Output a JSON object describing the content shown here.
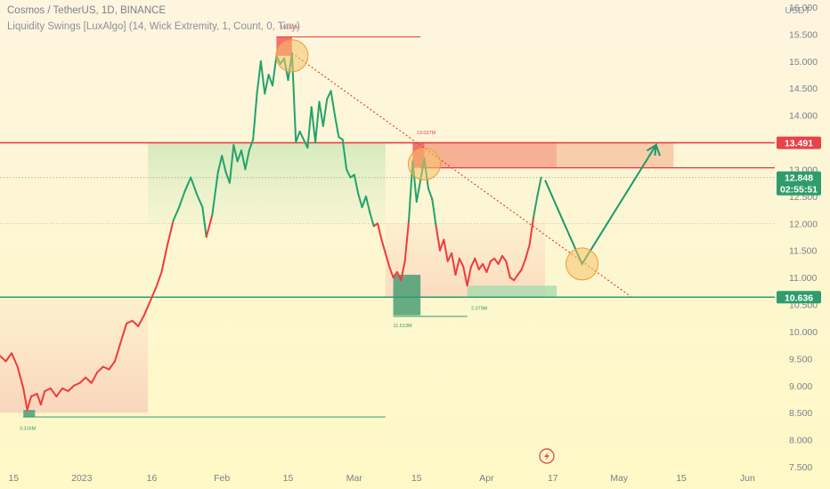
{
  "header": {
    "symbol_title": "Cosmos / TetherUS, 1D, BINANCE",
    "indicator_title": "Liquidity Swings [LuxAlgo] (14, Wick Extremity, 1, Count, 0, Tiny)",
    "currency": "USDT"
  },
  "colors": {
    "up": "#21a36c",
    "down": "#ef3b3b",
    "resistance": "#e8424a",
    "support": "#2e9d6b",
    "projection": "#1a9a6a",
    "circle_fill": "#f5c36a",
    "circle_stroke": "#ee9a3a"
  },
  "chart_data": {
    "type": "line",
    "price_series": [
      {
        "t": 0,
        "v": 9.55
      },
      {
        "t": 1.5,
        "v": 9.45
      },
      {
        "t": 3,
        "v": 9.6
      },
      {
        "t": 4.5,
        "v": 9.35
      },
      {
        "t": 6,
        "v": 8.95
      },
      {
        "t": 7,
        "v": 8.55
      },
      {
        "t": 8,
        "v": 8.8
      },
      {
        "t": 9.5,
        "v": 8.85
      },
      {
        "t": 10.5,
        "v": 8.65
      },
      {
        "t": 11.5,
        "v": 8.9
      },
      {
        "t": 13,
        "v": 8.95
      },
      {
        "t": 14.5,
        "v": 8.8
      },
      {
        "t": 16,
        "v": 8.95
      },
      {
        "t": 17.5,
        "v": 8.9
      },
      {
        "t": 19,
        "v": 9.0
      },
      {
        "t": 20.5,
        "v": 9.05
      },
      {
        "t": 22,
        "v": 9.15
      },
      {
        "t": 23.5,
        "v": 9.05
      },
      {
        "t": 25,
        "v": 9.25
      },
      {
        "t": 26.5,
        "v": 9.35
      },
      {
        "t": 28,
        "v": 9.3
      },
      {
        "t": 29.5,
        "v": 9.45
      },
      {
        "t": 31,
        "v": 9.8
      },
      {
        "t": 32.5,
        "v": 10.15
      },
      {
        "t": 34,
        "v": 10.2
      },
      {
        "t": 35.5,
        "v": 10.1
      },
      {
        "t": 37,
        "v": 10.3
      },
      {
        "t": 38.5,
        "v": 10.55
      },
      {
        "t": 40,
        "v": 10.8
      },
      {
        "t": 41.5,
        "v": 11.1
      },
      {
        "t": 43,
        "v": 11.6
      },
      {
        "t": 44.5,
        "v": 12.05
      },
      {
        "t": 46,
        "v": 12.3
      },
      {
        "t": 47.5,
        "v": 12.6
      },
      {
        "t": 49,
        "v": 12.85
      },
      {
        "t": 50.5,
        "v": 12.55
      },
      {
        "t": 52,
        "v": 12.3
      },
      {
        "t": 53,
        "v": 11.75
      },
      {
        "t": 54.5,
        "v": 12.15
      },
      {
        "t": 56,
        "v": 12.95
      },
      {
        "t": 57,
        "v": 13.25
      },
      {
        "t": 58,
        "v": 12.95
      },
      {
        "t": 59,
        "v": 12.75
      },
      {
        "t": 60,
        "v": 13.45
      },
      {
        "t": 61,
        "v": 13.15
      },
      {
        "t": 62,
        "v": 13.35
      },
      {
        "t": 63,
        "v": 13.0
      },
      {
        "t": 64,
        "v": 13.35
      },
      {
        "t": 65,
        "v": 13.55
      },
      {
        "t": 66,
        "v": 14.4
      },
      {
        "t": 67,
        "v": 15.0
      },
      {
        "t": 68,
        "v": 14.4
      },
      {
        "t": 69,
        "v": 14.75
      },
      {
        "t": 70,
        "v": 14.55
      },
      {
        "t": 71,
        "v": 15.1
      },
      {
        "t": 72,
        "v": 14.95
      },
      {
        "t": 73,
        "v": 15.05
      },
      {
        "t": 74,
        "v": 14.65
      },
      {
        "t": 75,
        "v": 15.15
      },
      {
        "t": 76,
        "v": 13.5
      },
      {
        "t": 77,
        "v": 13.7
      },
      {
        "t": 78,
        "v": 13.55
      },
      {
        "t": 79,
        "v": 13.4
      },
      {
        "t": 80,
        "v": 14.15
      },
      {
        "t": 81,
        "v": 13.5
      },
      {
        "t": 82,
        "v": 14.25
      },
      {
        "t": 83,
        "v": 13.8
      },
      {
        "t": 84,
        "v": 14.3
      },
      {
        "t": 85,
        "v": 14.45
      },
      {
        "t": 86,
        "v": 14.0
      },
      {
        "t": 87,
        "v": 13.6
      },
      {
        "t": 88,
        "v": 13.55
      },
      {
        "t": 89,
        "v": 13.0
      },
      {
        "t": 90,
        "v": 12.85
      },
      {
        "t": 91,
        "v": 12.9
      },
      {
        "t": 92,
        "v": 12.55
      },
      {
        "t": 93,
        "v": 12.3
      },
      {
        "t": 94,
        "v": 12.5
      },
      {
        "t": 95,
        "v": 12.2
      },
      {
        "t": 96,
        "v": 11.95
      },
      {
        "t": 97,
        "v": 12.0
      },
      {
        "t": 98,
        "v": 11.7
      },
      {
        "t": 99,
        "v": 11.45
      },
      {
        "t": 100,
        "v": 11.2
      },
      {
        "t": 101,
        "v": 11.0
      },
      {
        "t": 102,
        "v": 11.1
      },
      {
        "t": 103,
        "v": 10.95
      },
      {
        "t": 104,
        "v": 11.3
      },
      {
        "t": 105,
        "v": 12.05
      },
      {
        "t": 106,
        "v": 13.15
      },
      {
        "t": 107,
        "v": 12.4
      },
      {
        "t": 108,
        "v": 12.8
      },
      {
        "t": 109,
        "v": 13.2
      },
      {
        "t": 110,
        "v": 12.65
      },
      {
        "t": 111,
        "v": 12.45
      },
      {
        "t": 112,
        "v": 11.95
      },
      {
        "t": 113,
        "v": 11.5
      },
      {
        "t": 114,
        "v": 11.7
      },
      {
        "t": 115,
        "v": 11.3
      },
      {
        "t": 116,
        "v": 11.45
      },
      {
        "t": 117,
        "v": 11.05
      },
      {
        "t": 118,
        "v": 11.35
      },
      {
        "t": 119,
        "v": 11.2
      },
      {
        "t": 120,
        "v": 10.85
      },
      {
        "t": 121,
        "v": 11.2
      },
      {
        "t": 122,
        "v": 11.35
      },
      {
        "t": 123,
        "v": 11.15
      },
      {
        "t": 124,
        "v": 11.25
      },
      {
        "t": 125,
        "v": 11.1
      },
      {
        "t": 126,
        "v": 11.3
      },
      {
        "t": 127,
        "v": 11.35
      },
      {
        "t": 128,
        "v": 11.25
      },
      {
        "t": 129,
        "v": 11.4
      },
      {
        "t": 130,
        "v": 11.3
      },
      {
        "t": 131,
        "v": 11.0
      },
      {
        "t": 132,
        "v": 10.95
      },
      {
        "t": 133,
        "v": 11.05
      },
      {
        "t": 134,
        "v": 11.15
      },
      {
        "t": 135,
        "v": 11.35
      },
      {
        "t": 136,
        "v": 11.6
      },
      {
        "t": 137,
        "v": 12.1
      },
      {
        "t": 138,
        "v": 12.5
      },
      {
        "t": 139,
        "v": 12.85
      }
    ],
    "projection_path": [
      {
        "t": 140,
        "v": 12.8
      },
      {
        "t": 149.5,
        "v": 11.25
      },
      {
        "t": 168.5,
        "v": 13.45
      },
      {
        "t": 169.5,
        "v": 13.25
      }
    ],
    "resistance_level": 13.491,
    "support_level": 10.636,
    "current_price": 12.848,
    "countdown": "02:55:51",
    "trendline": {
      "from": {
        "t": 75,
        "v": 15.15
      },
      "to": {
        "t": 162,
        "v": 10.65
      }
    },
    "zones": [
      {
        "kind": "resistance-strong",
        "t0": 109,
        "t1": 143,
        "v0": 13.03,
        "v1": 13.49
      },
      {
        "kind": "resistance-faint",
        "t0": 143,
        "t1": 173,
        "v0": 13.03,
        "v1": 13.49
      },
      {
        "kind": "swing-high-box",
        "t0": 71,
        "t1": 75,
        "v0": 15.1,
        "v1": 15.45
      },
      {
        "kind": "swing-high-box",
        "t0": 106,
        "t1": 109,
        "v0": 13.03,
        "v1": 13.49
      },
      {
        "kind": "swing-low-box",
        "t0": 101,
        "t1": 108,
        "v0": 10.3,
        "v1": 11.05
      },
      {
        "kind": "swing-low-box",
        "t0": 120,
        "t1": 143,
        "v0": 10.65,
        "v1": 10.85
      },
      {
        "kind": "swing-low-box",
        "t0": 6,
        "t1": 9,
        "v0": 8.42,
        "v1": 8.55
      }
    ],
    "swing_lines": [
      {
        "t0": 71,
        "t1": 108,
        "v": 15.45
      },
      {
        "t0": 101,
        "t1": 120,
        "v": 10.28
      },
      {
        "t0": 6,
        "t1": 99,
        "v": 8.42
      }
    ],
    "annotations": [
      {
        "text": "10.055M",
        "t": 72,
        "v": 15.6,
        "color": "#e8424a"
      },
      {
        "text": "13.027M",
        "t": 107,
        "v": 13.65,
        "color": "#e8424a"
      },
      {
        "text": "11.513M",
        "t": 101,
        "v": 10.08,
        "color": "#2e9d6b"
      },
      {
        "text": "2.079M",
        "t": 121,
        "v": 10.4,
        "color": "#2e9d6b"
      },
      {
        "text": "3.316M",
        "t": 5,
        "v": 8.18,
        "color": "#2e9d6b"
      }
    ],
    "circles": [
      {
        "t": 75,
        "v": 15.1
      },
      {
        "t": 109,
        "v": 13.1
      },
      {
        "t": 149.5,
        "v": 11.25
      }
    ],
    "y_ticks": [
      "16.000",
      "15.500",
      "15.000",
      "14.500",
      "14.000",
      "13.500",
      "13.000",
      "12.500",
      "12.000",
      "11.500",
      "11.000",
      "10.500",
      "10.000",
      "9.500",
      "9.000",
      "8.500",
      "8.000",
      "7.500"
    ],
    "y_tick_values": [
      16.0,
      15.5,
      15.0,
      14.5,
      14.0,
      13.5,
      13.0,
      12.5,
      12.0,
      11.5,
      11.0,
      10.5,
      10.0,
      9.5,
      9.0,
      8.5,
      8.0,
      7.5
    ],
    "x_ticks": [
      "15",
      "2023",
      "16",
      "Feb",
      "15",
      "Mar",
      "15",
      "Apr",
      "17",
      "May",
      "15",
      "Jun"
    ],
    "x_tick_t": [
      3.5,
      21,
      39,
      57,
      74,
      91,
      107,
      125,
      142,
      159,
      175,
      192
    ],
    "t_range": [
      0,
      199
    ],
    "y_range": [
      7.5,
      16.0
    ]
  }
}
